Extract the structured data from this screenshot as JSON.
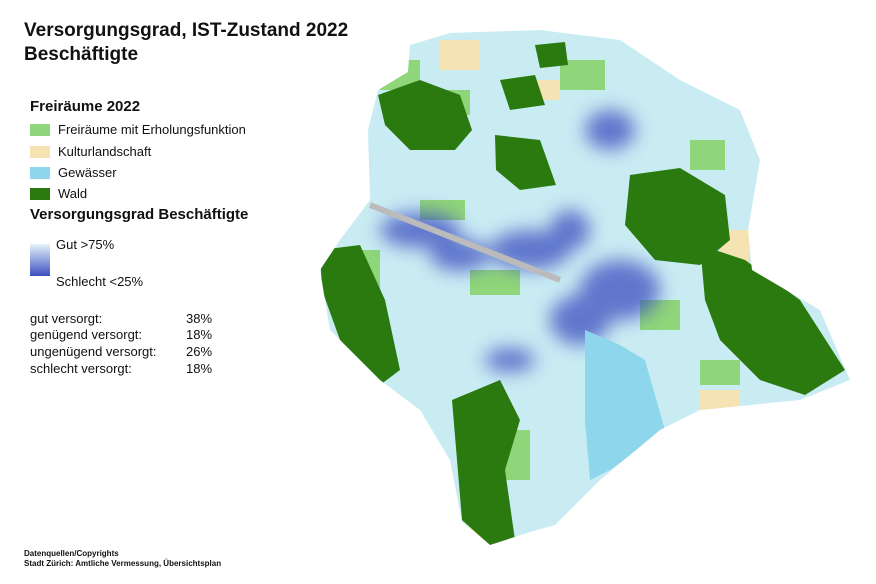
{
  "title": {
    "line1": "Versorgungsgrad, IST-Zustand 2022",
    "line2": "Beschäftigte"
  },
  "legend": {
    "title": "Freiräume 2022",
    "items": [
      "Freiräume mit Erholungsfunktion",
      "Kulturlandschaft",
      "Gewässer",
      "Wald"
    ],
    "gradient_title": "Versorgungsgrad Beschäftigte",
    "gradient_top": "Gut >75%",
    "gradient_bottom": "Schlecht <25%"
  },
  "stats": [
    {
      "label": "gut versorgt:",
      "value": "38%"
    },
    {
      "label": "genügend versorgt:",
      "value": "18%"
    },
    {
      "label": "ungenügend versorgt:",
      "value": "26%"
    },
    {
      "label": "schlecht versorgt:",
      "value": "18%"
    }
  ],
  "footer": {
    "line1": "Datenquellen/Copyrights",
    "line2": "Stadt Zürich: Amtliche Vermessung, Übersichtsplan"
  }
}
